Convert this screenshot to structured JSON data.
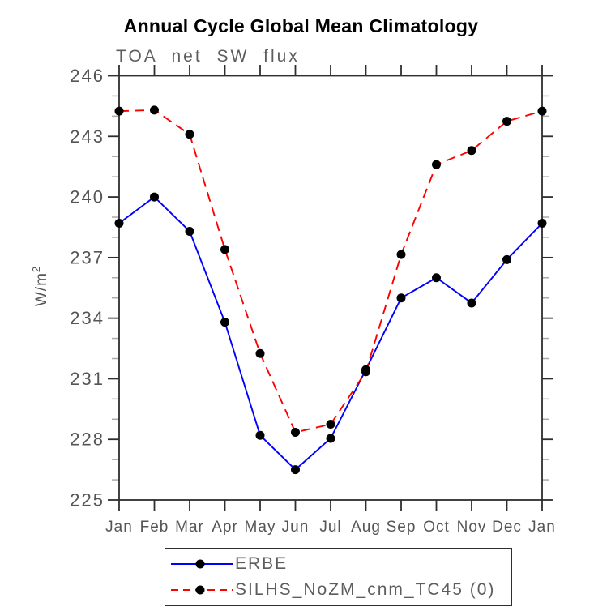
{
  "title": "Annual Cycle Global Mean Climatology",
  "subtitle": "TOA net SW flux",
  "chart_data": {
    "type": "line",
    "x": [
      "Jan",
      "Feb",
      "Mar",
      "Apr",
      "May",
      "Jun",
      "Jul",
      "Aug",
      "Sep",
      "Oct",
      "Nov",
      "Dec",
      "Jan"
    ],
    "xlabel": "",
    "ylabel": "W/m²",
    "ylabel_main": "W/m",
    "ylabel_sup": "2",
    "ylim": [
      225,
      246
    ],
    "ytick_major_step": 3,
    "ytick_minor_step": 1,
    "ytick_labels": [
      "225",
      "228",
      "231",
      "234",
      "237",
      "240",
      "243",
      "246"
    ],
    "grid": false,
    "legend_position": "bottom-center",
    "marker": "filled-circle-black",
    "series": [
      {
        "name": "ERBE",
        "color": "#0000ff",
        "line_style": "solid",
        "values": [
          238.7,
          240.0,
          238.3,
          233.8,
          228.2,
          226.5,
          228.05,
          231.45,
          235.0,
          236.0,
          234.75,
          236.9,
          238.7
        ]
      },
      {
        "name": "SILHS_NoZM_cnm_TC45 (0)",
        "color": "#ff0000",
        "line_style": "dashed",
        "values": [
          244.25,
          244.3,
          243.1,
          237.4,
          232.25,
          228.35,
          228.75,
          231.35,
          237.15,
          241.6,
          242.3,
          243.75,
          244.25
        ]
      }
    ]
  },
  "colors": {
    "marker": "#000000",
    "axis": "#2e2e2e",
    "minor_tick": "#aaaaaa",
    "gray_text": "#5a5a5a",
    "title_text": "#000000"
  }
}
